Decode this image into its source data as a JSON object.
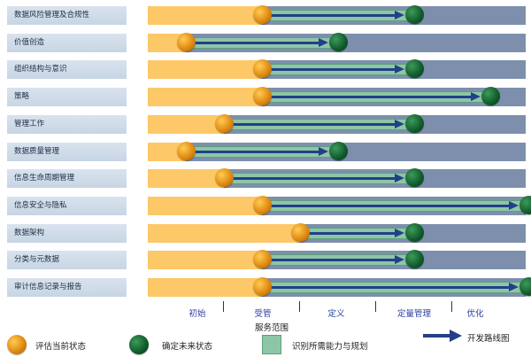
{
  "rows": [
    {
      "label": "数据风险管理及合规性",
      "current": 2,
      "future": 4
    },
    {
      "label": "价值创造",
      "current": 1,
      "future": 3
    },
    {
      "label": "组织结构与意识",
      "current": 2,
      "future": 4
    },
    {
      "label": "策略",
      "current": 2,
      "future": 5
    },
    {
      "label": "管理工作",
      "current": 1.5,
      "future": 4
    },
    {
      "label": "数据质量管理",
      "current": 1,
      "future": 3
    },
    {
      "label": "信息生命周期管理",
      "current": 1.5,
      "future": 4
    },
    {
      "label": "信息安全与隐私",
      "current": 2,
      "future": 5.5
    },
    {
      "label": "数据架构",
      "current": 2.5,
      "future": 4
    },
    {
      "label": "分类与元数据",
      "current": 2,
      "future": 4
    },
    {
      "label": "审计信息记录与报告",
      "current": 2,
      "future": 5.5
    }
  ],
  "stages": [
    "初始",
    "受管",
    "定义",
    "定量管理",
    "优化"
  ],
  "scope_label": "服务范围",
  "legend": {
    "current": "评估当前状态",
    "future": "确定未来状态",
    "gap": "识别所需能力与规划",
    "arrow": "开发路线图"
  },
  "colors": {
    "track": "#7d8fac",
    "current_fill": "#fdc867",
    "gap_fill": "#8dc6a6",
    "arrow": "#243f8a",
    "current_dot": "#e08b12",
    "future_dot": "#0f5a2a",
    "stage_text": "#2a3fa0"
  }
}
